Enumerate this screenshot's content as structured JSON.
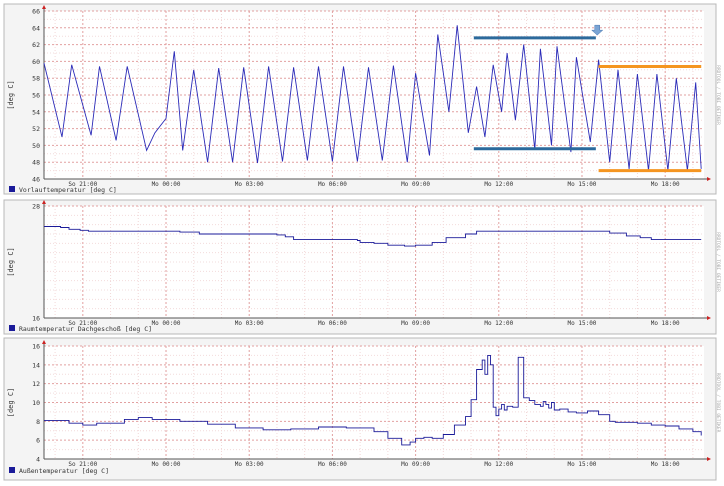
{
  "chart_data": [
    {
      "type": "line",
      "ylabel": "[deg C]",
      "ylim": [
        46,
        66
      ],
      "yticks": [
        "46",
        "48",
        "50",
        "52",
        "54",
        "56",
        "58",
        "60",
        "62",
        "64",
        "66"
      ],
      "xticks": [
        "So 21:00",
        "Mo 00:00",
        "Mo 03:00",
        "Mo 06:00",
        "Mo 09:00",
        "Mo 12:00",
        "Mo 15:00",
        "Mo 18:00"
      ],
      "x_range_hours": [
        19.6,
        43.4
      ],
      "grid": true,
      "legend": {
        "label": "Vorlauftemperatur [deg C]",
        "color": "#1a1a99",
        "placement": "bottom-left"
      },
      "side_text": "RRDTOOL / TOBI OETIKER",
      "series": [
        {
          "style": "oscillating",
          "cycles": [
            [
              19.6,
              59.8
            ],
            [
              20.25,
              51.0
            ],
            [
              20.6,
              59.6
            ],
            [
              21.3,
              51.2
            ],
            [
              21.6,
              59.4
            ],
            [
              22.2,
              50.6
            ],
            [
              22.6,
              59.4
            ],
            [
              23.3,
              49.4
            ],
            [
              23.6,
              51.5
            ],
            [
              24.0,
              53.2
            ],
            [
              24.3,
              61.2
            ],
            [
              24.6,
              49.4
            ],
            [
              25.0,
              59.0
            ],
            [
              25.5,
              48.0
            ],
            [
              25.9,
              59.2
            ],
            [
              26.4,
              48.0
            ],
            [
              26.8,
              59.3
            ],
            [
              27.3,
              47.9
            ],
            [
              27.7,
              59.4
            ],
            [
              28.2,
              48.1
            ],
            [
              28.6,
              59.3
            ],
            [
              29.1,
              48.2
            ],
            [
              29.5,
              59.4
            ],
            [
              30.0,
              48.1
            ],
            [
              30.4,
              59.4
            ],
            [
              30.9,
              48.1
            ],
            [
              31.3,
              59.3
            ],
            [
              31.8,
              48.2
            ],
            [
              32.2,
              59.5
            ],
            [
              32.7,
              48.0
            ],
            [
              33.0,
              58.6
            ],
            [
              33.5,
              48.8
            ],
            [
              33.8,
              63.2
            ],
            [
              34.2,
              54.0
            ],
            [
              34.5,
              64.3
            ],
            [
              34.9,
              51.5
            ],
            [
              35.2,
              57.0
            ],
            [
              35.5,
              51.0
            ],
            [
              35.8,
              59.6
            ],
            [
              36.1,
              54.0
            ],
            [
              36.3,
              61.0
            ],
            [
              36.6,
              53.0
            ],
            [
              36.9,
              62.0
            ],
            [
              37.3,
              49.5
            ],
            [
              37.5,
              61.5
            ],
            [
              37.9,
              50.0
            ],
            [
              38.1,
              61.8
            ],
            [
              38.6,
              49.2
            ],
            [
              38.8,
              60.5
            ],
            [
              39.3,
              50.4
            ],
            [
              39.6,
              60.2
            ],
            [
              40.0,
              48.0
            ],
            [
              40.3,
              59.0
            ],
            [
              40.7,
              47.2
            ],
            [
              41.0,
              58.5
            ],
            [
              41.4,
              47.0
            ],
            [
              41.7,
              58.5
            ],
            [
              42.1,
              47.0
            ],
            [
              42.4,
              58.0
            ],
            [
              42.8,
              47.0
            ],
            [
              43.1,
              57.5
            ],
            [
              43.3,
              47.2
            ]
          ],
          "color": "#2b2bb8"
        }
      ],
      "annotations": [
        {
          "type": "hline",
          "y": 62.8,
          "x": [
            35.1,
            39.5
          ],
          "color": "#2c6a9c"
        },
        {
          "type": "hline",
          "y": 49.6,
          "x": [
            35.1,
            39.5
          ],
          "color": "#2c6a9c"
        },
        {
          "type": "hline",
          "y": 59.4,
          "x": [
            39.6,
            43.3
          ],
          "color": "#f59520"
        },
        {
          "type": "hline",
          "y": 47.0,
          "x": [
            39.6,
            43.3
          ],
          "color": "#f59520"
        },
        {
          "type": "arrow",
          "x": 39.55,
          "y": 63.6,
          "color": "#7aa4d4"
        }
      ]
    },
    {
      "type": "line",
      "ylabel": "[deg C]",
      "ylim": [
        16,
        28
      ],
      "yticks": [
        "16",
        "28"
      ],
      "xticks": [
        "So 21:00",
        "Mo 00:00",
        "Mo 03:00",
        "Mo 06:00",
        "Mo 09:00",
        "Mo 12:00",
        "Mo 15:00",
        "Mo 18:00"
      ],
      "x_range_hours": [
        19.6,
        43.4
      ],
      "grid": true,
      "legend": {
        "label": "Raumtemperatur Dachgeschoß [deg C]",
        "color": "#1a1a99",
        "placement": "bottom-left"
      },
      "side_text": "RRDTOOL / TOBI OETIKER",
      "series": [
        {
          "style": "step",
          "x": [
            19.6,
            20.2,
            20.5,
            20.9,
            21.2,
            24.5,
            25.2,
            28.0,
            28.3,
            28.6,
            30.9,
            31.0,
            31.5,
            32.0,
            32.6,
            33.0,
            33.6,
            34.1,
            34.8,
            35.2,
            39.5,
            40.0,
            40.6,
            41.1,
            41.5,
            43.3
          ],
          "y": [
            25.8,
            25.7,
            25.5,
            25.4,
            25.3,
            25.2,
            25.0,
            24.9,
            24.7,
            24.4,
            24.3,
            24.1,
            24.0,
            23.8,
            23.7,
            23.8,
            24.1,
            24.6,
            25.0,
            25.3,
            25.3,
            25.1,
            24.8,
            24.6,
            24.4,
            24.4
          ],
          "color": "#1a1a99"
        }
      ]
    },
    {
      "type": "line",
      "ylabel": "[deg C]",
      "ylim": [
        4,
        16
      ],
      "yticks": [
        "4",
        "6",
        "8",
        "10",
        "12",
        "14",
        "16"
      ],
      "xticks": [
        "So 21:00",
        "Mo 00:00",
        "Mo 03:00",
        "Mo 06:00",
        "Mo 09:00",
        "Mo 12:00",
        "Mo 15:00",
        "Mo 18:00"
      ],
      "x_range_hours": [
        19.6,
        43.4
      ],
      "grid": true,
      "legend": {
        "label": "Außentemperatur [deg C]",
        "color": "#1a1a99",
        "placement": "bottom-left"
      },
      "side_text": "RRDTOOL / TOBI OETIKER",
      "series": [
        {
          "style": "step",
          "x": [
            19.6,
            20.5,
            21.0,
            21.5,
            22.5,
            23.0,
            23.5,
            24.5,
            25.5,
            26.5,
            27.5,
            28.5,
            29.5,
            30.5,
            31.5,
            32.0,
            32.5,
            32.8,
            33.0,
            33.3,
            33.6,
            34.0,
            34.4,
            34.8,
            35.0,
            35.2,
            35.4,
            35.5,
            35.6,
            35.7,
            35.8,
            35.9,
            36.0,
            36.1,
            36.2,
            36.3,
            36.5,
            36.7,
            36.9,
            37.1,
            37.3,
            37.5,
            37.6,
            37.7,
            37.8,
            37.9,
            38.0,
            38.2,
            38.5,
            38.8,
            39.2,
            39.6,
            40.0,
            40.2,
            40.5,
            41.0,
            41.5,
            42.0,
            42.5,
            43.0,
            43.3
          ],
          "y": [
            8.1,
            7.8,
            7.6,
            7.8,
            8.2,
            8.4,
            8.2,
            8.0,
            7.7,
            7.3,
            7.1,
            7.2,
            7.4,
            7.3,
            6.9,
            6.2,
            5.5,
            5.8,
            6.2,
            6.3,
            6.2,
            6.6,
            7.6,
            8.5,
            10.3,
            13.5,
            14.5,
            13.0,
            15.0,
            14.0,
            9.5,
            8.6,
            9.3,
            9.8,
            9.2,
            9.6,
            9.5,
            14.8,
            10.5,
            10.2,
            9.8,
            9.6,
            10.1,
            9.8,
            9.4,
            10.0,
            9.2,
            9.3,
            9.0,
            8.9,
            9.1,
            8.7,
            8.0,
            7.9,
            7.9,
            7.8,
            7.6,
            7.5,
            7.2,
            6.9,
            6.5
          ],
          "color": "#1a1a99"
        }
      ]
    }
  ]
}
